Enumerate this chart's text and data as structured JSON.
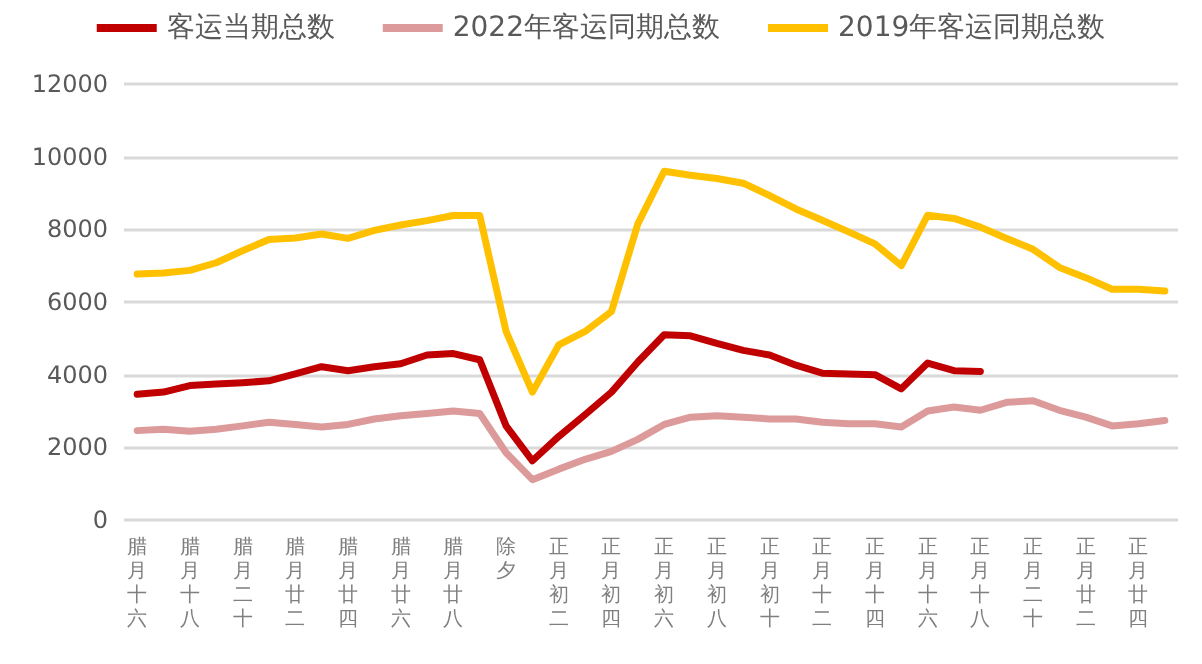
{
  "chart_data": {
    "type": "line",
    "categories": [
      "腊月十六",
      null,
      "腊月十八",
      null,
      "腊月二十",
      null,
      "腊月廿二",
      null,
      "腊月廿四",
      null,
      "腊月廿六",
      null,
      "腊月廿八",
      null,
      "除夕",
      null,
      "正月初二",
      null,
      "正月初四",
      null,
      "正月初六",
      null,
      "正月初八",
      null,
      "正月初十",
      null,
      "正月十二",
      null,
      "正月十四",
      null,
      "正月十六",
      null,
      "正月十八",
      null,
      "正月二十",
      null,
      "正月廿二",
      null,
      "正月廿四",
      null
    ],
    "series": [
      {
        "name": "客运当期总数",
        "color": "#c00000",
        "values": [
          3460,
          3520,
          3700,
          3740,
          3780,
          3830,
          4020,
          4220,
          4110,
          4220,
          4300,
          4540,
          4580,
          4410,
          2590,
          1630,
          2300,
          2900,
          3520,
          4350,
          5100,
          5070,
          4860,
          4670,
          4540,
          4260,
          4040,
          4020,
          4000,
          3610,
          4320,
          4110,
          4090,
          null,
          null,
          null,
          null,
          null,
          null,
          null
        ]
      },
      {
        "name": "2022年客运同期总数",
        "color": "#dc9a9a",
        "values": [
          2460,
          2500,
          2440,
          2500,
          2590,
          2690,
          2630,
          2560,
          2630,
          2780,
          2870,
          2930,
          3000,
          2930,
          1850,
          1110,
          1400,
          1670,
          1890,
          2220,
          2630,
          2830,
          2870,
          2830,
          2780,
          2780,
          2690,
          2650,
          2650,
          2560,
          3000,
          3110,
          3020,
          3240,
          3280,
          3020,
          2830,
          2590,
          2650,
          2740
        ]
      },
      {
        "name": "2019年客运同期总数",
        "color": "#ffc000",
        "values": [
          6770,
          6800,
          6870,
          7080,
          7410,
          7720,
          7760,
          7870,
          7750,
          7970,
          8120,
          8240,
          8380,
          8380,
          5190,
          3520,
          4820,
          5190,
          5740,
          8150,
          9600,
          9490,
          9400,
          9270,
          8930,
          8560,
          8250,
          7930,
          7600,
          7000,
          8390,
          8300,
          8060,
          7750,
          7450,
          6950,
          6670,
          6350,
          6350,
          6300
        ]
      }
    ],
    "ylim": [
      0,
      12000
    ],
    "yticks": [
      0,
      2000,
      4000,
      6000,
      8000,
      10000,
      12000
    ],
    "grid": "y",
    "legend": "top",
    "marker": "none",
    "line_style": "solid"
  }
}
